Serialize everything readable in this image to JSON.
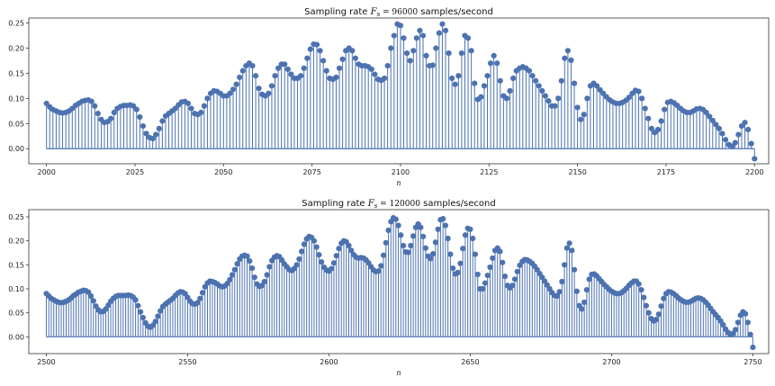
{
  "chart_data": [
    {
      "type": "stem",
      "title": "Sampling rate $F_s = 96000$ samples/second",
      "xlabel": "n",
      "ylabel": "",
      "xlim": [
        1995,
        2204
      ],
      "ylim": [
        -0.03,
        0.26
      ],
      "xticks": [
        2000,
        2025,
        2050,
        2075,
        2100,
        2125,
        2150,
        2175,
        2200
      ],
      "yticks": [
        0.0,
        0.05,
        0.1,
        0.15,
        0.2,
        0.25
      ],
      "ytick_labels": [
        "0.00",
        "0.05",
        "0.10",
        "0.15",
        "0.20",
        "0.25"
      ],
      "x_start": 2000,
      "x_end": 2200,
      "values": [
        0.09,
        0.083,
        0.078,
        0.075,
        0.072,
        0.071,
        0.072,
        0.075,
        0.08,
        0.086,
        0.09,
        0.094,
        0.096,
        0.097,
        0.094,
        0.085,
        0.07,
        0.058,
        0.052,
        0.054,
        0.06,
        0.072,
        0.08,
        0.084,
        0.086,
        0.086,
        0.087,
        0.085,
        0.078,
        0.063,
        0.045,
        0.03,
        0.022,
        0.02,
        0.028,
        0.04,
        0.055,
        0.065,
        0.07,
        0.075,
        0.08,
        0.087,
        0.093,
        0.094,
        0.09,
        0.08,
        0.07,
        0.068,
        0.072,
        0.085,
        0.1,
        0.11,
        0.115,
        0.114,
        0.11,
        0.105,
        0.105,
        0.11,
        0.118,
        0.128,
        0.142,
        0.155,
        0.165,
        0.17,
        0.165,
        0.145,
        0.12,
        0.108,
        0.105,
        0.11,
        0.125,
        0.145,
        0.16,
        0.168,
        0.168,
        0.158,
        0.148,
        0.14,
        0.14,
        0.145,
        0.16,
        0.18,
        0.198,
        0.208,
        0.207,
        0.195,
        0.175,
        0.155,
        0.14,
        0.138,
        0.142,
        0.16,
        0.178,
        0.195,
        0.2,
        0.195,
        0.18,
        0.168,
        0.165,
        0.165,
        0.163,
        0.158,
        0.148,
        0.138,
        0.136,
        0.14,
        0.165,
        0.2,
        0.225,
        0.248,
        0.245,
        0.22,
        0.19,
        0.175,
        0.195,
        0.22,
        0.235,
        0.225,
        0.185,
        0.165,
        0.166,
        0.2,
        0.23,
        0.248,
        0.235,
        0.19,
        0.14,
        0.128,
        0.145,
        0.19,
        0.225,
        0.22,
        0.195,
        0.13,
        0.098,
        0.103,
        0.125,
        0.145,
        0.17,
        0.185,
        0.17,
        0.135,
        0.105,
        0.1,
        0.115,
        0.14,
        0.155,
        0.16,
        0.163,
        0.16,
        0.155,
        0.145,
        0.135,
        0.125,
        0.115,
        0.105,
        0.095,
        0.085,
        0.085,
        0.1,
        0.135,
        0.18,
        0.195,
        0.176,
        0.13,
        0.082,
        0.058,
        0.068,
        0.1,
        0.125,
        0.13,
        0.125,
        0.117,
        0.11,
        0.103,
        0.097,
        0.093,
        0.09,
        0.09,
        0.092,
        0.096,
        0.102,
        0.11,
        0.116,
        0.114,
        0.1,
        0.08,
        0.06,
        0.04,
        0.032,
        0.038,
        0.055,
        0.078,
        0.092,
        0.094,
        0.091,
        0.086,
        0.08,
        0.075,
        0.072,
        0.072,
        0.075,
        0.079,
        0.08,
        0.078,
        0.072,
        0.064,
        0.056,
        0.048,
        0.04,
        0.03,
        0.018,
        0.008,
        0.005,
        0.012,
        0.028,
        0.045,
        0.052,
        0.038,
        0.01,
        -0.02
      ]
    },
    {
      "type": "stem",
      "title": "Sampling rate $F_s = 120000$ samples/second",
      "xlabel": "n",
      "ylabel": "",
      "xlim": [
        2493.8,
        2755.6
      ],
      "ylim": [
        -0.035,
        0.265
      ],
      "xticks": [
        2500,
        2550,
        2600,
        2650,
        2700,
        2750
      ],
      "yticks": [
        0.0,
        0.05,
        0.1,
        0.15,
        0.2,
        0.25
      ],
      "ytick_labels": [
        "0.00",
        "0.05",
        "0.10",
        "0.15",
        "0.20",
        "0.25"
      ],
      "x_start": 2500,
      "x_end": 2750,
      "values": [
        0.09,
        0.085,
        0.08,
        0.077,
        0.074,
        0.072,
        0.071,
        0.072,
        0.074,
        0.077,
        0.081,
        0.086,
        0.089,
        0.093,
        0.095,
        0.097,
        0.096,
        0.093,
        0.085,
        0.075,
        0.064,
        0.056,
        0.052,
        0.053,
        0.058,
        0.066,
        0.074,
        0.08,
        0.084,
        0.086,
        0.086,
        0.086,
        0.086,
        0.087,
        0.086,
        0.083,
        0.077,
        0.065,
        0.052,
        0.04,
        0.029,
        0.022,
        0.02,
        0.024,
        0.032,
        0.043,
        0.054,
        0.063,
        0.068,
        0.072,
        0.076,
        0.08,
        0.086,
        0.091,
        0.094,
        0.093,
        0.09,
        0.082,
        0.074,
        0.069,
        0.068,
        0.071,
        0.08,
        0.092,
        0.104,
        0.112,
        0.116,
        0.115,
        0.113,
        0.11,
        0.106,
        0.104,
        0.106,
        0.111,
        0.119,
        0.129,
        0.14,
        0.152,
        0.162,
        0.168,
        0.17,
        0.168,
        0.158,
        0.143,
        0.124,
        0.11,
        0.105,
        0.107,
        0.115,
        0.129,
        0.146,
        0.159,
        0.166,
        0.169,
        0.167,
        0.16,
        0.152,
        0.146,
        0.14,
        0.138,
        0.142,
        0.15,
        0.162,
        0.178,
        0.193,
        0.204,
        0.209,
        0.207,
        0.2,
        0.187,
        0.171,
        0.156,
        0.145,
        0.139,
        0.137,
        0.142,
        0.154,
        0.169,
        0.184,
        0.195,
        0.2,
        0.198,
        0.19,
        0.18,
        0.171,
        0.166,
        0.164,
        0.165,
        0.164,
        0.16,
        0.154,
        0.146,
        0.139,
        0.136,
        0.137,
        0.148,
        0.17,
        0.196,
        0.222,
        0.24,
        0.248,
        0.245,
        0.232,
        0.212,
        0.19,
        0.177,
        0.176,
        0.19,
        0.21,
        0.228,
        0.235,
        0.228,
        0.209,
        0.185,
        0.168,
        0.163,
        0.173,
        0.197,
        0.224,
        0.244,
        0.246,
        0.232,
        0.205,
        0.172,
        0.143,
        0.131,
        0.134,
        0.153,
        0.184,
        0.212,
        0.226,
        0.224,
        0.205,
        0.172,
        0.13,
        0.1,
        0.1,
        0.112,
        0.128,
        0.145,
        0.164,
        0.18,
        0.185,
        0.178,
        0.155,
        0.126,
        0.107,
        0.102,
        0.107,
        0.12,
        0.136,
        0.149,
        0.157,
        0.161,
        0.16,
        0.157,
        0.153,
        0.147,
        0.14,
        0.132,
        0.124,
        0.116,
        0.108,
        0.1,
        0.092,
        0.086,
        0.085,
        0.094,
        0.115,
        0.15,
        0.185,
        0.195,
        0.18,
        0.14,
        0.095,
        0.065,
        0.058,
        0.072,
        0.098,
        0.12,
        0.13,
        0.131,
        0.127,
        0.121,
        0.115,
        0.109,
        0.104,
        0.099,
        0.095,
        0.092,
        0.09,
        0.09,
        0.092,
        0.096,
        0.101,
        0.107,
        0.112,
        0.116,
        0.116,
        0.11,
        0.098,
        0.082,
        0.065,
        0.05,
        0.038,
        0.033,
        0.036,
        0.047,
        0.064,
        0.08,
        0.09,
        0.094,
        0.093,
        0.09,
        0.086,
        0.081,
        0.077,
        0.074,
        0.072,
        0.072,
        0.074,
        0.077,
        0.08,
        0.081,
        0.08,
        0.077,
        0.072,
        0.066,
        0.059,
        0.052,
        0.046,
        0.04,
        0.033,
        0.025,
        0.016,
        0.009,
        0.005,
        0.007,
        0.015,
        0.03,
        0.045,
        0.052,
        0.048,
        0.03,
        0.005,
        -0.022
      ]
    }
  ]
}
